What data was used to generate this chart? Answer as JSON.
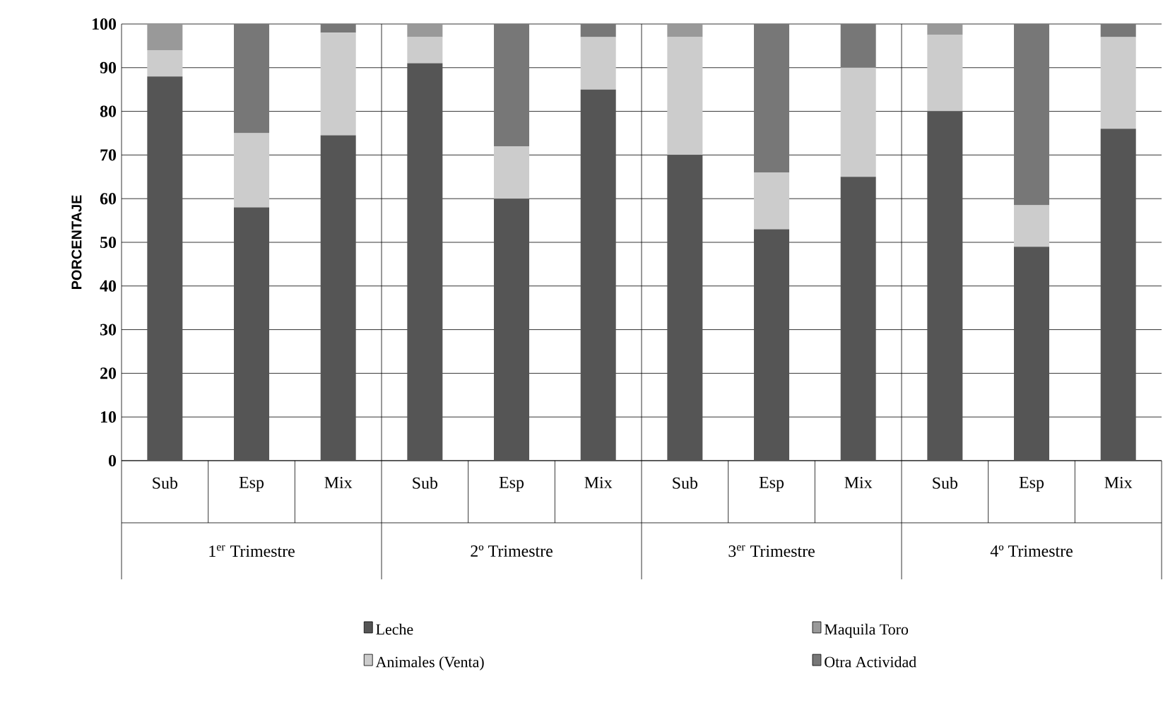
{
  "chart_data": {
    "type": "bar",
    "stacked": true,
    "ylabel": "PORCENTAJE",
    "categories": [
      "Sub",
      "Esp",
      "Mix",
      "Sub",
      "Esp",
      "Mix",
      "Sub",
      "Esp",
      "Mix",
      "Sub",
      "Esp",
      "Mix"
    ],
    "series": [
      {
        "name": "Leche",
        "color": "#555555",
        "values": [
          88,
          58,
          74.5,
          91,
          60,
          85,
          70,
          53,
          65,
          80,
          49,
          76
        ]
      },
      {
        "name": "Animales (Venta)",
        "color": "#cccccc",
        "values": [
          6,
          17,
          23.5,
          6,
          12,
          12,
          27,
          13,
          25,
          17.5,
          9.5,
          21
        ]
      },
      {
        "name": "Maquila Toro",
        "color": "#999999",
        "values": [
          6,
          0,
          0,
          3,
          0,
          0,
          3,
          0,
          0,
          2.5,
          0,
          0
        ]
      },
      {
        "name": "Otra Actividad",
        "color": "#777777",
        "values": [
          0,
          25,
          2,
          0,
          28,
          3,
          0,
          34,
          10,
          0,
          41.5,
          3
        ]
      }
    ],
    "ylim": [
      0,
      100
    ],
    "yticks": [
      0,
      10,
      20,
      30,
      40,
      50,
      60,
      70,
      80,
      90,
      100
    ],
    "grid": "y",
    "legend": "bottom",
    "annotations": [
      "1$^{er}$ Trimestre",
      "2º Trimestre",
      "3$^{er}$ Trimestre",
      "4º Trimestre"
    ]
  }
}
